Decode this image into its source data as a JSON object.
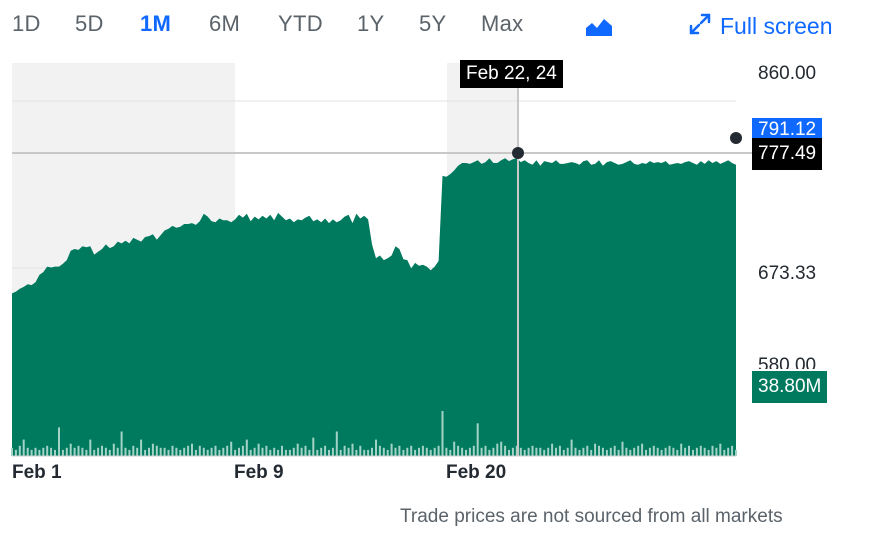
{
  "range_buttons": [
    "1D",
    "5D",
    "1M",
    "6M",
    "YTD",
    "1Y",
    "5Y",
    "Max"
  ],
  "active_range": "1M",
  "chart_type_icon": "mountain-chart-icon",
  "full_screen": {
    "icon": "expand-arrows-icon",
    "label": "Full screen"
  },
  "x_ticks": [
    "Feb 1",
    "Feb 9",
    "Feb 20"
  ],
  "y_ticks": [
    "860.00",
    "673.33",
    "580.00"
  ],
  "current_price_tag": "791.12",
  "crosshair": {
    "date_label": "Feb 22, 24",
    "price_label": "777.49"
  },
  "volume_tag": "38.80M",
  "disclaimer": "Trade prices are not sourced from all markets",
  "colors": {
    "accent": "#0f69ff",
    "area": "#007a5e",
    "volume": "#a3d3c6",
    "shade": "#f2f2f2",
    "crosshair": "#000000"
  },
  "chart_data": {
    "type": "area",
    "ylim": [
      580,
      860
    ],
    "x_labels": [
      "Feb 1",
      "Feb 9",
      "Feb 20"
    ],
    "price_series": [
      652,
      654,
      657,
      659,
      662,
      661,
      664,
      672,
      675,
      681,
      680,
      681,
      681,
      684,
      688,
      698,
      700,
      699,
      703,
      702,
      703,
      694,
      697,
      700,
      705,
      701,
      703,
      708,
      706,
      709,
      706,
      712,
      710,
      708,
      713,
      714,
      716,
      710,
      715,
      720,
      722,
      725,
      723,
      724,
      727,
      727,
      728,
      726,
      730,
      738,
      735,
      730,
      729,
      733,
      731,
      731,
      729,
      732,
      737,
      734,
      738,
      730,
      735,
      732,
      736,
      733,
      737,
      731,
      739,
      735,
      731,
      733,
      729,
      732,
      731,
      734,
      736,
      730,
      732,
      729,
      733,
      728,
      732,
      729,
      731,
      735,
      737,
      728,
      738,
      733,
      736,
      732,
      705,
      690,
      693,
      688,
      690,
      693,
      703,
      700,
      689,
      688,
      679,
      685,
      682,
      683,
      681,
      677,
      681,
      687,
      779,
      778,
      781,
      785,
      790,
      793,
      793,
      792,
      794,
      796,
      792,
      794,
      798,
      793,
      793,
      796,
      798,
      795,
      797,
      798,
      794,
      796,
      793,
      791,
      796,
      790,
      795,
      794,
      793,
      796,
      792,
      792,
      793,
      794,
      793,
      791,
      795,
      796,
      791,
      792,
      796,
      790,
      794,
      795,
      793,
      791,
      792,
      794,
      796,
      792,
      791,
      793,
      792,
      795,
      793,
      794,
      793,
      795,
      791,
      792,
      793,
      792,
      794,
      795,
      793,
      791,
      795,
      792,
      796,
      793,
      795,
      792,
      794,
      796,
      793,
      791
    ],
    "volume_series": [
      4,
      3,
      5,
      8,
      4,
      3,
      4,
      3,
      4,
      5,
      4,
      3,
      14,
      3,
      4,
      6,
      4,
      5,
      4,
      3,
      8,
      3,
      4,
      5,
      4,
      3,
      6,
      4,
      12,
      4,
      3,
      5,
      4,
      8,
      3,
      4,
      6,
      5,
      4,
      4,
      3,
      5,
      4,
      3,
      4,
      5,
      6,
      3,
      5,
      4,
      3,
      4,
      5,
      3,
      4,
      5,
      7,
      3,
      4,
      5,
      8,
      3,
      4,
      6,
      4,
      5,
      3,
      4,
      3,
      5,
      3,
      3,
      4,
      6,
      4,
      5,
      3,
      9,
      3,
      4,
      5,
      3,
      4,
      12,
      3,
      5,
      4,
      6,
      3,
      5,
      3,
      3,
      4,
      8,
      5,
      4,
      3,
      6,
      4,
      5,
      3,
      4,
      5,
      3,
      4,
      5,
      4,
      3,
      4,
      5,
      22,
      4,
      3,
      7,
      5,
      4,
      3,
      4,
      5,
      16,
      4,
      5,
      3,
      4,
      6,
      7,
      5,
      3,
      4,
      5,
      4,
      3,
      4,
      5,
      4,
      4,
      3,
      4,
      6,
      4,
      5,
      3,
      4,
      8,
      4,
      3,
      4,
      5,
      3,
      6,
      5,
      4,
      3,
      4,
      5,
      3,
      7,
      4,
      3,
      4,
      5,
      6,
      3,
      4,
      5,
      4,
      3,
      4,
      5,
      4,
      3,
      6,
      4,
      5,
      3,
      4,
      5,
      4,
      3,
      5,
      4,
      6,
      3,
      4,
      5,
      3
    ]
  }
}
